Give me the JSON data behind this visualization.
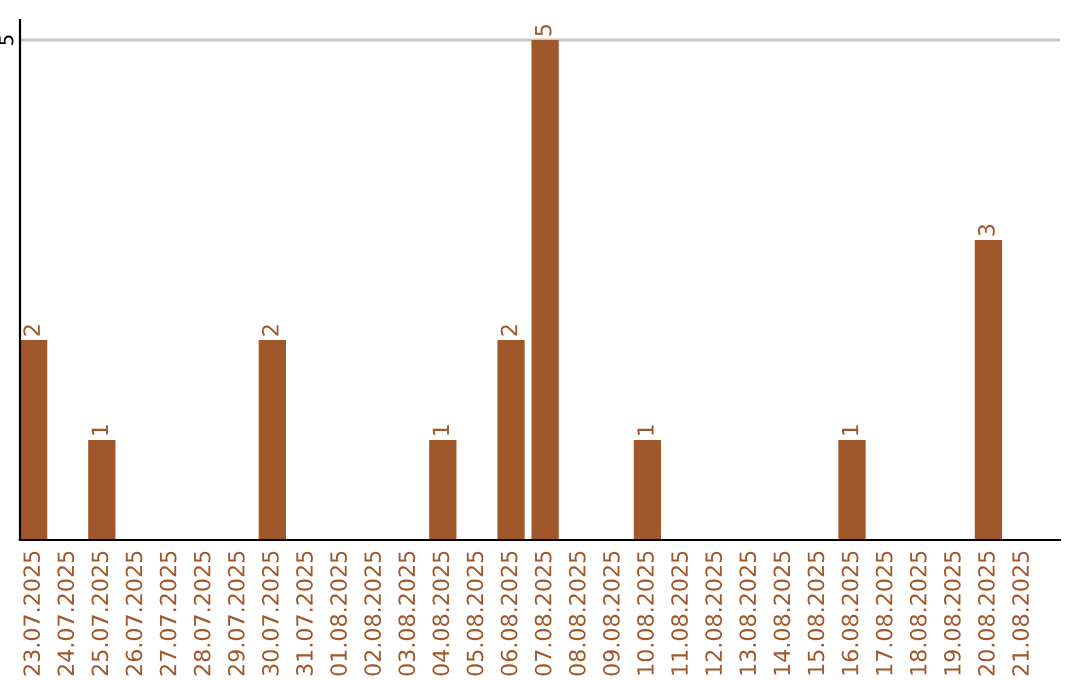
{
  "chart_data": {
    "type": "bar",
    "categories": [
      "23.07.2025",
      "24.07.2025",
      "25.07.2025",
      "26.07.2025",
      "27.07.2025",
      "28.07.2025",
      "29.07.2025",
      "30.07.2025",
      "31.07.2025",
      "01.08.2025",
      "02.08.2025",
      "03.08.2025",
      "04.08.2025",
      "05.08.2025",
      "06.08.2025",
      "07.08.2025",
      "08.08.2025",
      "09.08.2025",
      "10.08.2025",
      "11.08.2025",
      "12.08.2025",
      "13.08.2025",
      "14.08.2025",
      "15.08.2025",
      "16.08.2025",
      "17.08.2025",
      "18.08.2025",
      "19.08.2025",
      "20.08.2025",
      "21.08.2025"
    ],
    "values": [
      2,
      0,
      1,
      0,
      0,
      0,
      0,
      2,
      0,
      0,
      0,
      0,
      1,
      0,
      2,
      5,
      0,
      0,
      1,
      0,
      0,
      0,
      0,
      0,
      1,
      0,
      0,
      0,
      3,
      0
    ],
    "value_labels": [
      "2",
      null,
      "1",
      null,
      null,
      null,
      null,
      "2",
      null,
      null,
      null,
      null,
      "1",
      null,
      "2",
      "5",
      null,
      null,
      "1",
      null,
      null,
      null,
      null,
      null,
      "1",
      null,
      null,
      null,
      "3",
      null
    ],
    "color": "#a0572a",
    "ylim": [
      0,
      5.2
    ],
    "yticks": [
      5
    ],
    "grid": "y",
    "legend": false
  }
}
